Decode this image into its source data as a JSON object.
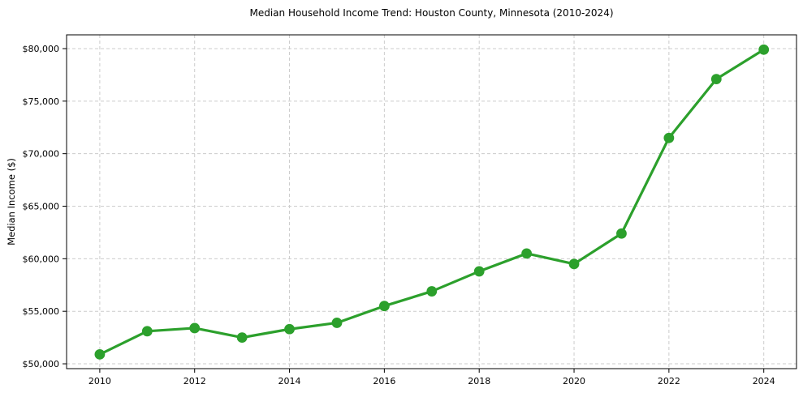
{
  "chart_data": {
    "type": "line",
    "title": "Median Household Income Trend: Houston County, Minnesota (2010-2024)",
    "xlabel": "",
    "ylabel": "Median Income ($)",
    "series_name": "Median household income",
    "x": [
      2010,
      2011,
      2012,
      2013,
      2014,
      2015,
      2016,
      2017,
      2018,
      2019,
      2020,
      2021,
      2022,
      2023,
      2024
    ],
    "values": [
      50900,
      53100,
      53400,
      52500,
      53300,
      53900,
      55500,
      56900,
      58800,
      60500,
      59500,
      62400,
      71500,
      77100,
      79900
    ],
    "xticks": [
      2010,
      2012,
      2014,
      2016,
      2018,
      2020,
      2022,
      2024
    ],
    "xtick_labels": [
      "2010",
      "2012",
      "2014",
      "2016",
      "2018",
      "2020",
      "2022",
      "2024"
    ],
    "yticks": [
      50000,
      55000,
      60000,
      65000,
      70000,
      75000,
      80000
    ],
    "ytick_labels": [
      "$50,000",
      "$55,000",
      "$60,000",
      "$65,000",
      "$70,000",
      "$75,000",
      "$80,000"
    ],
    "xlim": [
      2009.3,
      2024.69
    ],
    "ylim": [
      49540,
      81310
    ],
    "grid": true,
    "grid_style": "dashed",
    "legend": false,
    "marker": "circle",
    "colors": {
      "line": "#2ca02c",
      "marker": "#2ca02c",
      "grid": "#cccccc",
      "spine": "#000000",
      "text": "#000000",
      "background": "#ffffff"
    }
  }
}
